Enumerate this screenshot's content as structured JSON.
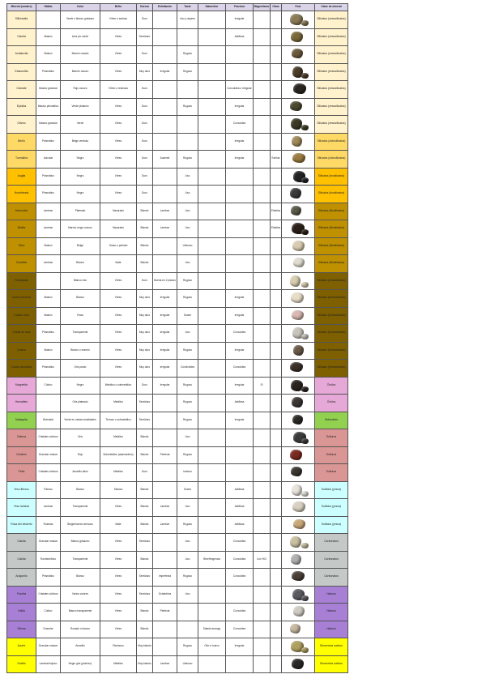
{
  "headers": [
    "Mineral (nombre)",
    "Hábito",
    "Color",
    "Brillo",
    "Dureza",
    "Exfoliación",
    "Tacto",
    "Sabor/olor",
    "Fractura",
    "Magnetismo",
    "Otras",
    "Foto",
    "Clase de mineral"
  ],
  "class_colors": {
    "Silicatos (nesosilicatos)": "#fff2cc",
    "Silicatos (ciclosilicatos)": "#ffd966",
    "Silicatos (inosilicatos)": "#ffc000",
    "Silicatos (filosilicatos)": "#bf9000",
    "Silicatos (tectosilicatos)": "#7f6000",
    "Óxidos": "#e6a8d7",
    "Hidróxidos": "#92d050",
    "Sulfuros": "#da9694",
    "Sulfatos (yesos)": "#ccffff",
    "Carbonatos": "#c4c9c7",
    "Haluros": "#a77fd4",
    "Elementos nativos": "#ffff00"
  },
  "rows": [
    {
      "cells": [
        "Sillimanita",
        "",
        "Verde o blanco grisáceo",
        "Vítreo o sedoso",
        "Duro",
        "",
        "Liso y áspero",
        "",
        "Irregular",
        "",
        "",
        "",
        "Silicatos (nesosilicatos)"
      ],
      "photo_color": "#8a7a55"
    },
    {
      "cells": [
        "Cianita",
        "Masivo",
        "Azul y/o verde",
        "Vítreo",
        "Semiduro",
        "",
        "",
        "",
        "Astillosa",
        "",
        "",
        "",
        "Silicatos (nesosilicatos)"
      ],
      "photo_color": "#7a6a3a"
    },
    {
      "cells": [
        "Andalucita",
        "Masivo",
        "Marrón rosado",
        "Vítreo",
        "Duro",
        "",
        "Rugoso",
        "",
        "",
        "",
        "",
        "",
        "Silicatos (nesosilicatos)"
      ],
      "photo_color": "#6b5a3a"
    },
    {
      "cells": [
        "Estaurolita",
        "Prismático",
        "Marrón oscuro",
        "Vítreo",
        "Muy duro",
        "Irregular",
        "Rugoso",
        "",
        "",
        "",
        "",
        "",
        "Silicatos (nesosilicatos)"
      ],
      "photo_color": "#4a3c28"
    },
    {
      "cells": [
        "Granate",
        "Masivo granular",
        "Rojo oscuro",
        "Vítreo o resinoso",
        "Duro",
        "",
        "",
        "",
        "Concoidea o irregular",
        "",
        "",
        "",
        "Silicatos (nesosilicatos)"
      ],
      "photo_color": "#2a2622"
    },
    {
      "cells": [
        "Epidota",
        "Masivo prismático",
        "Verde pistacho",
        "Vítreo",
        "Duro",
        "",
        "Rugoso",
        "",
        "Irregular",
        "",
        "",
        "",
        "Silicatos (nesosilicatos)"
      ],
      "photo_color": "#4b4a30"
    },
    {
      "cells": [
        "Olivino",
        "Masivo granular",
        "Verde",
        "Vítreo",
        "Duro",
        "",
        "",
        "",
        "Concoidea",
        "",
        "",
        "",
        "Silicatos (nesosilicatos)"
      ],
      "photo_color": "#3c3a26"
    },
    {
      "cells": [
        "Berilo",
        "Prismático",
        "Beige verdoso",
        "Vítreo",
        "Duro",
        "",
        "",
        "",
        "Irregular",
        "",
        "",
        "",
        "Silicatos (ciclosilicatos)"
      ],
      "photo_color": "#a08a5a"
    },
    {
      "cells": [
        "Turmalina",
        "Acicular",
        "Negro",
        "Vítreo",
        "Duro",
        "Ausente",
        "Rugoso",
        "",
        "Irregular",
        "",
        "Estrías",
        "",
        "Silicatos (ciclosilicatos)"
      ],
      "photo_color": "#9a7a40"
    },
    {
      "cells": [
        "Augita",
        "Prismático",
        "Negro",
        "Vítreo",
        "Duro",
        "",
        "Liso",
        "",
        "",
        "",
        "",
        "",
        "Silicatos (inosilicatos)"
      ],
      "photo_color": "#222222"
    },
    {
      "cells": [
        "Hornblenda",
        "Prismático",
        "Negro",
        "Vítreo",
        "Duro",
        "",
        "Liso",
        "",
        "",
        "",
        "",
        "",
        "Silicatos (inosilicatos)"
      ],
      "photo_color": "#3a3a3a"
    },
    {
      "cells": [
        "Moscovita",
        "Laminar",
        "Plateado",
        "Nacarado",
        "Blando",
        "Laminar",
        "Liso",
        "",
        "",
        "",
        "Elástica",
        "",
        "Silicatos (filosilicatos)"
      ],
      "photo_color": "#5a5a4a"
    },
    {
      "cells": [
        "Biotita",
        "Laminar",
        "Marrón-negro oscuro",
        "Nacarado",
        "Blando",
        "Laminar",
        "Liso",
        "",
        "",
        "",
        "Elástica",
        "",
        "Silicatos (filosilicatos)"
      ],
      "photo_color": "#2a2018"
    },
    {
      "cells": [
        "Talco",
        "Masivo",
        "Beige",
        "Graso o perlado",
        "Blando",
        "",
        "Untuoso",
        "",
        "",
        "",
        "",
        "",
        "Silicatos (filosilicatos)"
      ],
      "photo_color": "#d8ccb0"
    },
    {
      "cells": [
        "Caolinita",
        "Laminar",
        "Blanco",
        "Mate",
        "Blando",
        "",
        "Liso",
        "",
        "",
        "",
        "",
        "",
        "Silicatos (filosilicatos)"
      ],
      "photo_color": "#e0dcd0"
    },
    {
      "cells": [
        "Feldespato",
        "",
        "Blanco roto",
        "Vítreo",
        "Duro",
        "Buena en 2 planos",
        "Rugoso",
        "",
        "",
        "",
        "",
        "",
        "Silicatos (tectosilicatos)"
      ],
      "photo_color": "#d8cdb0"
    },
    {
      "cells": [
        "Cuarzo lechoso",
        "Masivo",
        "Blanco",
        "Vítreo",
        "Muy duro",
        "Irregular",
        "Rugoso",
        "",
        "Irregular",
        "",
        "",
        "",
        "Silicatos (tectosilicatos)"
      ],
      "photo_color": "#e6dcc8"
    },
    {
      "cells": [
        "Cuarzo rosa",
        "Masivo",
        "Rosa",
        "Vítreo",
        "Muy duro",
        "Irregular",
        "Suave",
        "",
        "Irregular",
        "",
        "",
        "",
        "Silicatos (tectosilicatos)"
      ],
      "photo_color": "#d8b8b0"
    },
    {
      "cells": [
        "Cristal de roca",
        "Prismático",
        "Transparente",
        "Vítreo",
        "Muy duro",
        "Irregular",
        "Liso",
        "",
        "Concoidea",
        "",
        "",
        "",
        "Silicatos (tectosilicatos)"
      ],
      "photo_color": "#c8c4bc"
    },
    {
      "cells": [
        "Cuarzo",
        "Masivo",
        "Blanco o marrón",
        "Vítreo",
        "Muy duro",
        "Irregular",
        "Rugoso",
        "",
        "Irregular",
        "",
        "",
        "",
        "Silicatos (tectosilicatos)"
      ],
      "photo_color": "#6a5a48"
    },
    {
      "cells": [
        "Cuarzo ahumado",
        "Prismático",
        "Gris pardo",
        "Vítreo",
        "Muy duro",
        "Irregular",
        "Conchoidea",
        "",
        "Concoidea",
        "",
        "",
        "",
        "Silicatos (tectosilicatos)"
      ],
      "photo_color": "#3a3028"
    },
    {
      "cells": [
        "Magnetita",
        "Cúbico",
        "Negro",
        "Metálico o submetálico",
        "Duro",
        "Irregular",
        "Rugoso",
        "",
        "Irregular",
        "Sí",
        "",
        "",
        "Óxidos"
      ],
      "photo_color": "#2a2420"
    },
    {
      "cells": [
        "Hematites",
        "",
        "Gris plateado",
        "Metálico",
        "Semiduro",
        "",
        "Rugoso",
        "",
        "Astillosa",
        "",
        "",
        "",
        "Óxidos"
      ],
      "photo_color": "#3a3634"
    },
    {
      "cells": [
        "Malaquita",
        "Botroidal",
        "Verde en varias tonalidades",
        "Terroso o submetálico",
        "Semiduro",
        "",
        "Rugoso",
        "",
        "Irregular",
        "",
        "",
        "",
        "Hidróxidos"
      ],
      "photo_color": "#2c2a26"
    },
    {
      "cells": [
        "Galena",
        "Cristales cúbicos",
        "Gris",
        "Metálico",
        "Blando",
        "",
        "Liso",
        "",
        "",
        "",
        "",
        "",
        "Sulfuros"
      ],
      "photo_color": "#3a3a3a"
    },
    {
      "cells": [
        "Cinabrio",
        "Granular masivo",
        "Rojo",
        "Submetálico (adamantino)",
        "Blando",
        "Perfecta",
        "Rugoso",
        "",
        "",
        "",
        "",
        "",
        "Sulfuros"
      ],
      "photo_color": "#7a2a20"
    },
    {
      "cells": [
        "Pirita",
        "Cristales cúbicos",
        "Amarillo latón",
        "Metálico",
        "Duro",
        "",
        "Inodoro",
        "",
        "",
        "",
        "",
        "",
        "Sulfuros"
      ],
      "photo_color": "#3a3630"
    },
    {
      "cells": [
        "Yeso fibroso",
        "Fibroso",
        "Blanco",
        "Sedoso",
        "Blando",
        "",
        "Suave",
        "",
        "Astillosa",
        "",
        "",
        "",
        "Sulfatos (yesos)"
      ],
      "photo_color": "#e8e4dc"
    },
    {
      "cells": [
        "Yeso laminar",
        "Laminar",
        "Transparente",
        "Vítreo",
        "Blando",
        "Laminar",
        "Liso",
        "",
        "Astillosa",
        "",
        "",
        "",
        "Sulfatos (yesos)"
      ],
      "photo_color": "#d8d0c0"
    },
    {
      "cells": [
        "Rosa del desierto",
        "Rosetas",
        "Beige/marrón arenoso",
        "Mate",
        "Blando",
        "Laminar",
        "Rugoso",
        "",
        "Astillosa",
        "",
        "",
        "",
        "Sulfatos (yesos)"
      ],
      "photo_color": "#c8a878"
    },
    {
      "cells": [
        "Calcita",
        "Granular masivo",
        "Blanco grisáceo",
        "Vítreo",
        "Semiduro",
        "",
        "Liso",
        "",
        "Concoidea",
        "",
        "",
        "",
        "Carbonatos"
      ],
      "photo_color": "#c8c0a0"
    },
    {
      "cells": [
        "Calcita",
        "Romboédrico",
        "Transparente",
        "Vítreo",
        "Blando",
        "",
        "Liso",
        "Birrefringencia",
        "Concoidea",
        "Con HCl",
        "",
        "",
        "Carbonatos"
      ],
      "photo_color": "#b0b0b0"
    },
    {
      "cells": [
        "Aragonito",
        "Prismático",
        "Blanco",
        "Vítreo",
        "Semiduro",
        "Imperfecta",
        "Rugoso",
        "",
        "Concoidea",
        "",
        "",
        "",
        "Carbonatos"
      ],
      "photo_color": "#4a4038"
    },
    {
      "cells": [
        "Fluorita",
        "Cristales cúbicos",
        "Varios colores",
        "Vítreo",
        "Semiduro",
        "Octaédrica",
        "Liso",
        "",
        "",
        "",
        "",
        "",
        "Haluros"
      ],
      "photo_color": "#5a5a60"
    },
    {
      "cells": [
        "Halita",
        "Cúbico",
        "Blanco transparente",
        "Vítreo",
        "Blando",
        "Perfecta",
        "",
        "",
        "Concoidea",
        "",
        "",
        "",
        "Haluros"
      ],
      "photo_color": "#d0ccc4"
    },
    {
      "cells": [
        "Silvina",
        "Granular",
        "Rosado o blanco",
        "Vítreo",
        "Blando",
        "",
        "",
        "Salado amargo",
        "Concoidea",
        "",
        "",
        "",
        "Haluros"
      ],
      "photo_color": "#c8b8a0"
    },
    {
      "cells": [
        "Azufre",
        "Granular masivo",
        "Amarillo",
        "Resinoso",
        "Muy blando",
        "",
        "Rugoso",
        "Olor a huevo",
        "Irregular",
        "",
        "",
        "",
        "Elementos nativos"
      ],
      "photo_color": "#b0a060"
    },
    {
      "cells": [
        "Grafito",
        "Laminar/hojoso",
        "Negro gris (plomizo)",
        "Metálico",
        "Muy blando",
        "Laminar",
        "Untuoso",
        "",
        "",
        "",
        "",
        "",
        "Elementos nativos"
      ],
      "photo_color": "#2a2826"
    }
  ]
}
